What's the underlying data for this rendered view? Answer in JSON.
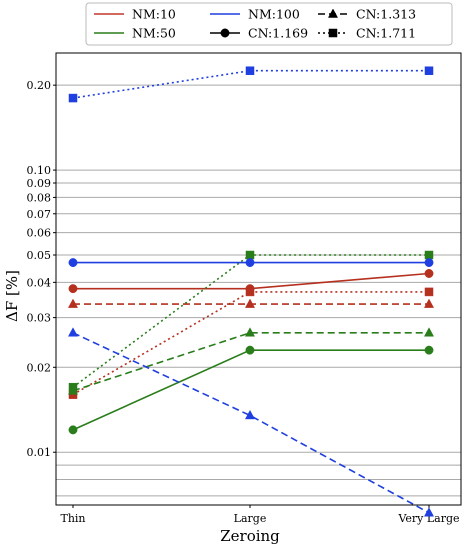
{
  "chart_data": {
    "type": "line",
    "title": "",
    "xlabel": "Zeroing",
    "ylabel": "ΔF [%]",
    "y_scale": "log",
    "ylim": [
      0.0065,
      0.26
    ],
    "categories": [
      "Thin",
      "Large",
      "Very Large"
    ],
    "y_ticks": [
      {
        "value": 0.01,
        "label": "0.01"
      },
      {
        "value": 0.02,
        "label": "0.02"
      },
      {
        "value": 0.03,
        "label": "0.03"
      },
      {
        "value": 0.04,
        "label": "0.04"
      },
      {
        "value": 0.05,
        "label": "0.05"
      },
      {
        "value": 0.06,
        "label": "0.06"
      },
      {
        "value": 0.07,
        "label": "0.07"
      },
      {
        "value": 0.08,
        "label": "0.08"
      },
      {
        "value": 0.09,
        "label": "0.09"
      },
      {
        "value": 0.1,
        "label": "0.10"
      },
      {
        "value": 0.2,
        "label": "0.20"
      }
    ],
    "minor_gridlines": [
      0.007,
      0.008,
      0.009
    ],
    "grid": true,
    "legend": {
      "placement": "top-outside",
      "entries": [
        {
          "label": "NM:10",
          "kind": "color",
          "color": "#c0392b"
        },
        {
          "label": "NM:100",
          "kind": "color",
          "color": "#1f3fe0"
        },
        {
          "label": "CN:1.313",
          "kind": "style",
          "linestyle": "dashed",
          "marker": "triangle"
        },
        {
          "label": "NM:50",
          "kind": "color",
          "color": "#2a7d1b"
        },
        {
          "label": "CN:1.169",
          "kind": "style",
          "linestyle": "solid",
          "marker": "circle"
        },
        {
          "label": "CN:1.711",
          "kind": "style",
          "linestyle": "dotted",
          "marker": "square"
        }
      ]
    },
    "colors": {
      "NM:10": "#b5301f",
      "NM:50": "#2a7d1b",
      "NM:100": "#1f3fe0"
    },
    "series": [
      {
        "nm": "NM:10",
        "cn": "CN:1.169",
        "values": [
          0.038,
          0.038,
          0.043
        ]
      },
      {
        "nm": "NM:10",
        "cn": "CN:1.313",
        "values": [
          0.0335,
          0.0335,
          0.0335
        ]
      },
      {
        "nm": "NM:10",
        "cn": "CN:1.711",
        "values": [
          0.016,
          0.037,
          0.037
        ]
      },
      {
        "nm": "NM:50",
        "cn": "CN:1.169",
        "values": [
          0.012,
          0.023,
          0.023
        ]
      },
      {
        "nm": "NM:50",
        "cn": "CN:1.313",
        "values": [
          0.0165,
          0.0265,
          0.0265
        ]
      },
      {
        "nm": "NM:50",
        "cn": "CN:1.711",
        "values": [
          0.017,
          0.05,
          0.05
        ]
      },
      {
        "nm": "NM:100",
        "cn": "CN:1.169",
        "values": [
          0.047,
          0.047,
          0.047
        ]
      },
      {
        "nm": "NM:100",
        "cn": "CN:1.313",
        "values": [
          0.0265,
          0.0135,
          0.0061
        ]
      },
      {
        "nm": "NM:100",
        "cn": "CN:1.711",
        "values": [
          0.18,
          0.225,
          0.225
        ]
      }
    ]
  }
}
